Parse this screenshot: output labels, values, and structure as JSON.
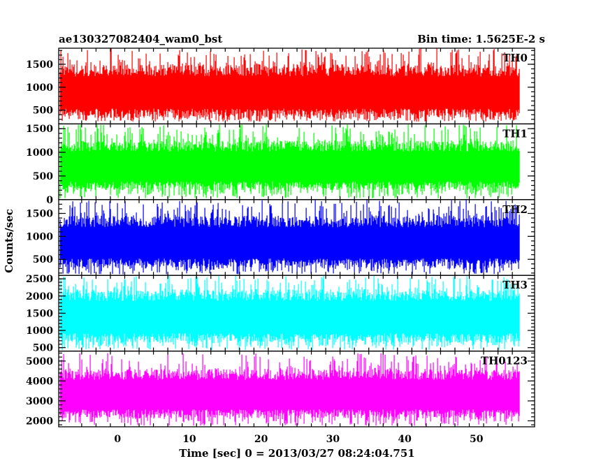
{
  "header": {
    "title": "ae130327082404_wam0_bst",
    "bin_time": "Bin time: 1.5625E-2 s"
  },
  "chart_data": {
    "type": "line",
    "title": "ae130327082404_wam0_bst",
    "subtitle": "Bin time: 1.5625E-2 s",
    "xlabel": "Time [sec] 0 = 2013/03/27 08:24:04.751",
    "ylabel": "Counts/sec",
    "xlim": [
      -8.2,
      58.1
    ],
    "x_range_data": [
      -8.0,
      56.0
    ],
    "x_ticks": [
      0,
      10,
      20,
      30,
      40,
      50
    ],
    "x_tick_labels": [
      "0",
      "10",
      "20",
      "30",
      "40",
      "50"
    ],
    "grid": false,
    "panels": [
      {
        "name": "TH0",
        "color": "#ff0000",
        "ylim": [
          200,
          1850
        ],
        "y_ticks": [
          500,
          1000,
          1500
        ],
        "y_tick_labels": [
          "500",
          "1000",
          "1500"
        ],
        "typical_low": 330,
        "typical_high": 1500,
        "peak_min": 250,
        "peak_max": 1850
      },
      {
        "name": "TH1",
        "color": "#00ff00",
        "ylim": [
          0,
          1600
        ],
        "y_ticks": [
          0,
          500,
          1000,
          1500
        ],
        "y_tick_labels": [
          "0",
          "500",
          "1000",
          "1500"
        ],
        "typical_low": 200,
        "typical_high": 1250,
        "peak_min": 30,
        "peak_max": 1600
      },
      {
        "name": "TH2",
        "color": "#0000ff",
        "ylim": [
          150,
          1800
        ],
        "y_ticks": [
          500,
          1000,
          1500
        ],
        "y_tick_labels": [
          "500",
          "1000",
          "1500"
        ],
        "typical_low": 320,
        "typical_high": 1450,
        "peak_min": 170,
        "peak_max": 1800
      },
      {
        "name": "TH3",
        "color": "#00ffff",
        "ylim": [
          400,
          2600
        ],
        "y_ticks": [
          500,
          1000,
          1500,
          2000,
          2500
        ],
        "y_tick_labels": [
          "500",
          "1000",
          "1500",
          "2000",
          "2500"
        ],
        "typical_low": 650,
        "typical_high": 2200,
        "peak_min": 430,
        "peak_max": 2600
      },
      {
        "name": "TH0123",
        "color": "#ff00ff",
        "ylim": [
          1700,
          5500
        ],
        "y_ticks": [
          2000,
          3000,
          4000,
          5000
        ],
        "y_tick_labels": [
          "2000",
          "3000",
          "4000",
          "5000"
        ],
        "typical_low": 2150,
        "typical_high": 4600,
        "peak_min": 1750,
        "peak_max": 5400
      }
    ]
  }
}
